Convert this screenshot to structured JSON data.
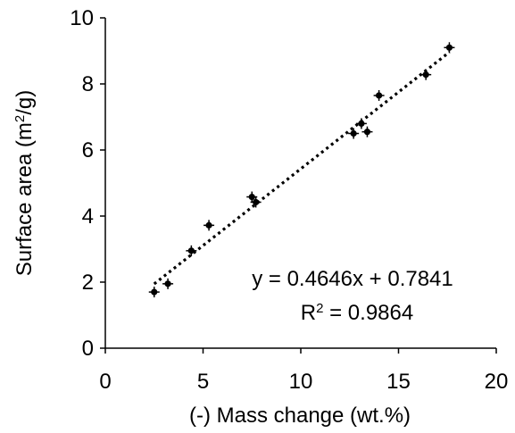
{
  "chart_data": {
    "type": "scatter",
    "xlabel": "(-) Mass change (wt.%)",
    "ylabel_main": "Surface area (m",
    "ylabel_sup": "2",
    "ylabel_end": "/g)",
    "xlim": [
      0,
      20
    ],
    "ylim": [
      0,
      10
    ],
    "x_ticks": [
      0,
      5,
      10,
      15,
      20
    ],
    "y_ticks": [
      0,
      2,
      4,
      6,
      8,
      10
    ],
    "grid": false,
    "legend": "none",
    "series": [
      {
        "points": [
          {
            "x": 2.5,
            "y": 1.7
          },
          {
            "x": 3.2,
            "y": 1.95
          },
          {
            "x": 4.4,
            "y": 2.95
          },
          {
            "x": 5.3,
            "y": 3.72
          },
          {
            "x": 7.5,
            "y": 4.58
          },
          {
            "x": 7.7,
            "y": 4.42
          },
          {
            "x": 12.7,
            "y": 6.5
          },
          {
            "x": 13.1,
            "y": 6.8
          },
          {
            "x": 13.4,
            "y": 6.55
          },
          {
            "x": 14.0,
            "y": 7.65
          },
          {
            "x": 16.4,
            "y": 8.28
          },
          {
            "x": 17.6,
            "y": 9.1
          }
        ]
      }
    ],
    "trendline": {
      "type": "linear",
      "slope": 0.4646,
      "intercept": 0.7841,
      "x_range": [
        2.5,
        17.6
      ],
      "equation_label": "y = 0.4646x + 0.7841",
      "r2_label_main": "R",
      "r2_label_sup": "2",
      "r2_label_end": " = 0.9864"
    },
    "colors": {
      "marker": "#000000",
      "axis": "#000000",
      "trendline": "#000000"
    }
  }
}
